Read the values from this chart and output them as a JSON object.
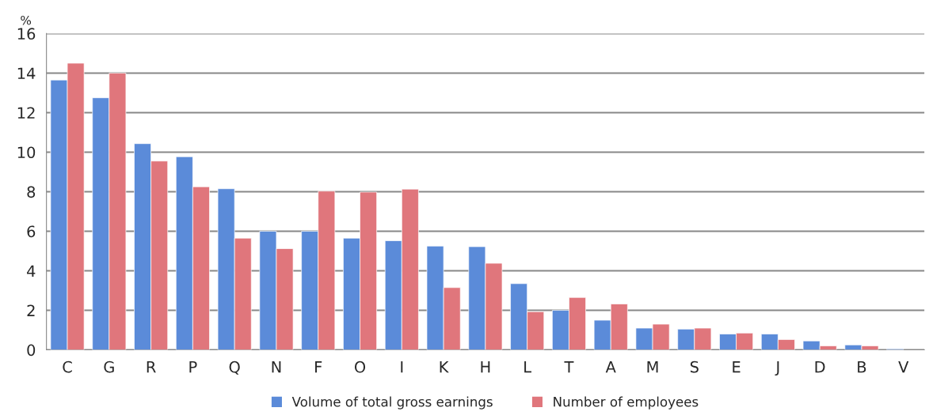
{
  "chart_data": {
    "type": "bar",
    "ylabel": "%",
    "categories": [
      "C",
      "G",
      "R",
      "P",
      "Q",
      "N",
      "F",
      "O",
      "I",
      "K",
      "H",
      "L",
      "T",
      "A",
      "M",
      "S",
      "E",
      "J",
      "D",
      "B",
      "V"
    ],
    "series": [
      {
        "name": "Volume of total gross earnings",
        "color": "#5b8bd9",
        "values": [
          13.65,
          12.75,
          10.43,
          9.77,
          8.15,
          6.0,
          6.0,
          5.65,
          5.52,
          5.25,
          5.22,
          3.35,
          2.0,
          1.5,
          1.1,
          1.05,
          0.8,
          0.8,
          0.45,
          0.25,
          0.05
        ]
      },
      {
        "name": "Number of employees",
        "color": "#e0767c",
        "values": [
          14.5,
          14.0,
          9.55,
          8.25,
          5.65,
          5.12,
          8.03,
          7.98,
          8.13,
          3.15,
          4.38,
          1.93,
          2.65,
          2.32,
          1.3,
          1.1,
          0.85,
          0.52,
          0.2,
          0.2,
          null
        ]
      }
    ],
    "ylim": [
      0,
      16
    ],
    "yticks": [
      0,
      2,
      4,
      6,
      8,
      10,
      12,
      14,
      16
    ],
    "grid": "y",
    "legend": "bottom"
  }
}
